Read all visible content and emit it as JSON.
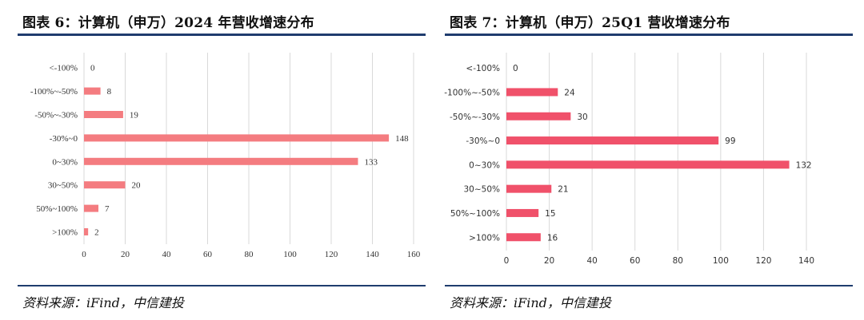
{
  "panels": [
    {
      "title": "图表 6：计算机（申万）2024 年营收增速分布",
      "source": "资料来源：iFind，中信建投",
      "chart_data": {
        "type": "bar",
        "orientation": "horizontal",
        "categories": [
          "<-100%",
          "-100%~-50%",
          "-50%~-30%",
          "-30%~0",
          "0~30%",
          "30~50%",
          "50%~100%",
          ">100%"
        ],
        "values": [
          0,
          8,
          19,
          148,
          133,
          20,
          7,
          2
        ],
        "xlim": [
          0,
          160
        ],
        "xticks": [
          0,
          20,
          40,
          60,
          80,
          100,
          120,
          140,
          160
        ],
        "grid": "vertical",
        "bar_color": "#f47c80"
      }
    },
    {
      "title": "图表 7：计算机（申万）25Q1 营收增速分布",
      "source": "资料来源：iFind，中信建投",
      "chart_data": {
        "type": "bar",
        "orientation": "horizontal",
        "categories": [
          "<-100%",
          "-100%~-50%",
          "-50%~-30%",
          "-30%~0",
          "0~30%",
          "30~50%",
          "50%~100%",
          ">100%"
        ],
        "values": [
          0,
          24,
          30,
          99,
          132,
          21,
          15,
          16
        ],
        "xlim": [
          0,
          140
        ],
        "xticks": [
          0,
          20,
          40,
          60,
          80,
          100,
          120,
          140
        ],
        "grid": "vertical",
        "bar_color": "#f0516a"
      }
    }
  ]
}
